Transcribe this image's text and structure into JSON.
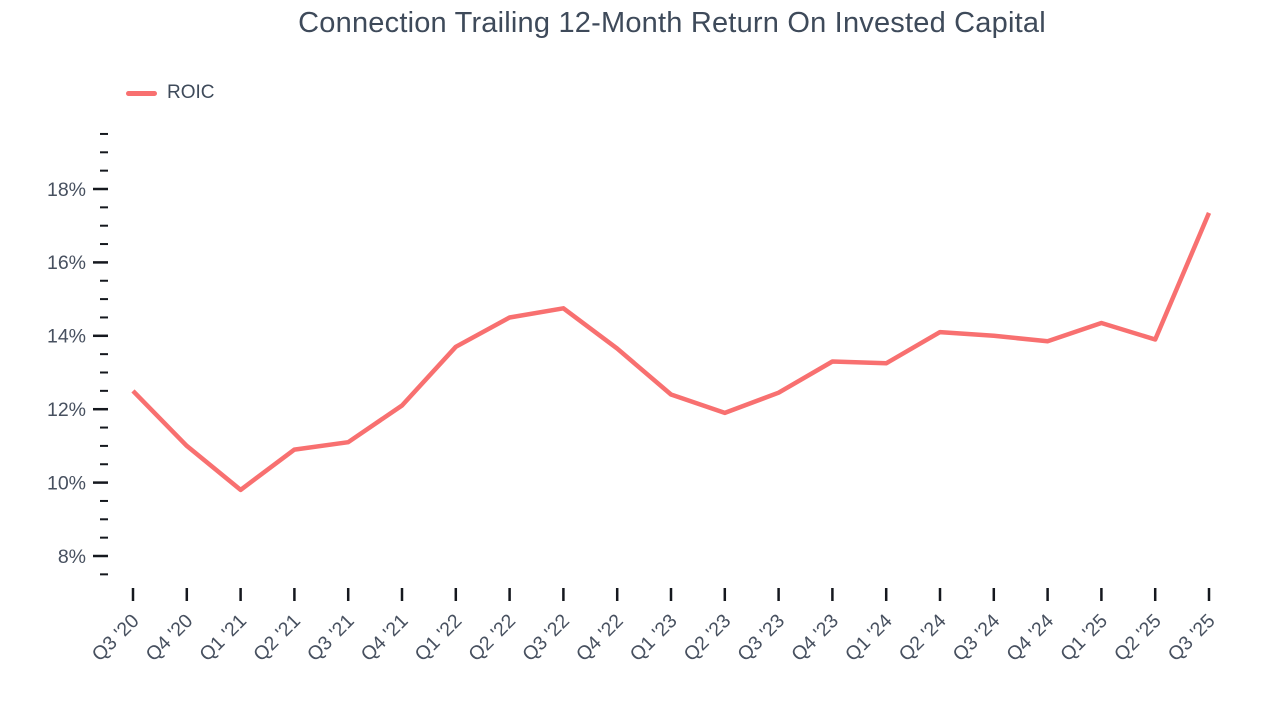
{
  "title": "Connection Trailing 12-Month Return On Invested Capital",
  "legend": {
    "items": [
      {
        "label": "ROIC",
        "color": "#f87070"
      }
    ]
  },
  "colors": {
    "accent_line": "#f87070",
    "title_text": "#3e4a5a",
    "axis_text": "#47505f",
    "tick_mark": "#15181e",
    "background": "#ffffff"
  },
  "chart_data": {
    "type": "line",
    "title": "Connection Trailing 12-Month Return On Invested Capital",
    "xlabel": "",
    "ylabel": "",
    "grid": false,
    "legend_position": "top-left",
    "categories": [
      "Q3 '20",
      "Q4 '20",
      "Q1 '21",
      "Q2 '21",
      "Q3 '21",
      "Q4 '21",
      "Q1 '22",
      "Q2 '22",
      "Q3 '22",
      "Q4 '22",
      "Q1 '23",
      "Q2 '23",
      "Q3 '23",
      "Q4 '23",
      "Q1 '24",
      "Q2 '24",
      "Q3 '24",
      "Q4 '24",
      "Q1 '25",
      "Q2 '25",
      "Q3 '25"
    ],
    "series": [
      {
        "name": "ROIC",
        "color": "#f87070",
        "values": [
          12.5,
          11.0,
          9.8,
          10.9,
          11.1,
          12.1,
          13.7,
          14.5,
          14.75,
          13.65,
          12.4,
          11.9,
          12.45,
          13.3,
          13.25,
          14.1,
          14.0,
          13.85,
          14.35,
          13.9,
          17.35
        ]
      }
    ],
    "y_axis": {
      "unit": "%",
      "min": 7.5,
      "max": 19.5,
      "minor_step": 0.5,
      "major_ticks": [
        8,
        10,
        12,
        14,
        16,
        18
      ],
      "tick_labels": [
        "8%",
        "10%",
        "12%",
        "14%",
        "16%",
        "18%"
      ]
    }
  }
}
